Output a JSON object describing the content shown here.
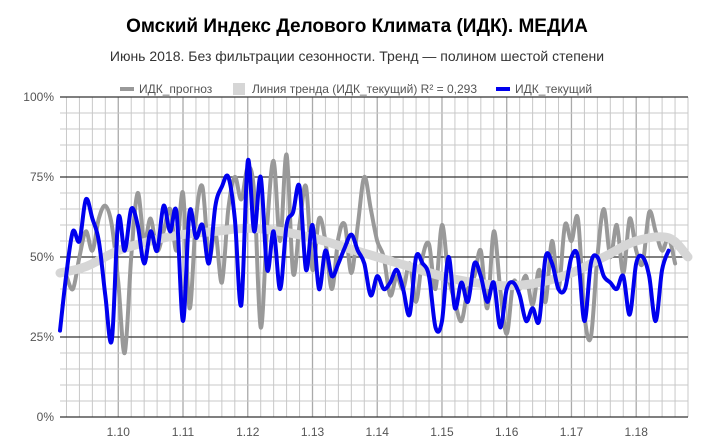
{
  "chart_data": {
    "type": "line",
    "title": "Омский Индекс Делового Климата (ИДК). МЕДИА",
    "subtitle": "Июнь 2018. Без фильтрации сезонности. Тренд — полином шестой степени",
    "ylim": [
      0,
      100
    ],
    "yticks": [
      0,
      25,
      50,
      75,
      100
    ],
    "ytick_labels": [
      "0%",
      "25%",
      "50%",
      "75%",
      "100%"
    ],
    "xlim": [
      1.091,
      1.188
    ],
    "xticks": [
      1.1,
      1.11,
      1.12,
      1.13,
      1.14,
      1.15,
      1.16,
      1.17,
      1.18
    ],
    "xtick_labels": [
      "1.10",
      "1.11",
      "1.12",
      "1.13",
      "1.14",
      "1.15",
      "1.16",
      "1.17",
      "1.18"
    ],
    "grid": true,
    "legend_position": "top",
    "series": [
      {
        "name": "ИДК_прогноз",
        "color": "#999999",
        "x": [
          1.092,
          1.093,
          1.094,
          1.095,
          1.096,
          1.097,
          1.098,
          1.099,
          1.1,
          1.101,
          1.102,
          1.103,
          1.104,
          1.105,
          1.106,
          1.107,
          1.108,
          1.109,
          1.11,
          1.111,
          1.112,
          1.113,
          1.114,
          1.115,
          1.116,
          1.117,
          1.118,
          1.119,
          1.12,
          1.121,
          1.122,
          1.123,
          1.124,
          1.125,
          1.126,
          1.127,
          1.128,
          1.129,
          1.13,
          1.131,
          1.132,
          1.133,
          1.134,
          1.135,
          1.136,
          1.137,
          1.138,
          1.139,
          1.14,
          1.141,
          1.142,
          1.143,
          1.144,
          1.145,
          1.146,
          1.147,
          1.148,
          1.149,
          1.15,
          1.151,
          1.152,
          1.153,
          1.154,
          1.155,
          1.156,
          1.157,
          1.158,
          1.159,
          1.16,
          1.161,
          1.162,
          1.163,
          1.164,
          1.165,
          1.166,
          1.167,
          1.168,
          1.169,
          1.17,
          1.171,
          1.172,
          1.173,
          1.174,
          1.175,
          1.176,
          1.177,
          1.178,
          1.179,
          1.18,
          1.181,
          1.182,
          1.183,
          1.184,
          1.185,
          1.186
        ],
        "values": [
          44,
          40,
          50,
          58,
          52,
          62,
          66,
          60,
          42,
          20,
          50,
          70,
          55,
          62,
          52,
          58,
          65,
          52,
          70,
          34,
          62,
          72,
          50,
          58,
          42,
          65,
          75,
          68,
          78,
          70,
          28,
          60,
          80,
          55,
          82,
          45,
          60,
          72,
          46,
          62,
          55,
          40,
          56,
          60,
          45,
          60,
          75,
          65,
          55,
          50,
          38,
          44,
          40,
          48,
          36,
          50,
          54,
          40,
          60,
          44,
          36,
          30,
          40,
          44,
          52,
          34,
          58,
          40,
          26,
          42,
          40,
          44,
          35,
          46,
          36,
          55,
          40,
          60,
          55,
          62,
          32,
          25,
          50,
          65,
          50,
          60,
          45,
          62,
          52,
          48,
          64,
          58,
          52,
          56,
          48
        ],
        "line_width": 4
      },
      {
        "name": "Линия тренда (ИДК_текущий) R² = 0,293",
        "color": "#d6d6d6",
        "x": [
          1.091,
          1.095,
          1.1,
          1.105,
          1.11,
          1.115,
          1.12,
          1.125,
          1.13,
          1.135,
          1.14,
          1.145,
          1.15,
          1.155,
          1.16,
          1.165,
          1.17,
          1.175,
          1.18,
          1.185,
          1.188
        ],
        "values": [
          45,
          47,
          52,
          55,
          57,
          58,
          59,
          58,
          56,
          53,
          50,
          47,
          44,
          42,
          41,
          42,
          45,
          50,
          55,
          56,
          50
        ],
        "line_width": 9
      },
      {
        "name": "ИДК_текущий",
        "color": "#0000ee",
        "x": [
          1.091,
          1.092,
          1.093,
          1.094,
          1.095,
          1.096,
          1.097,
          1.098,
          1.099,
          1.1,
          1.101,
          1.102,
          1.103,
          1.104,
          1.105,
          1.106,
          1.107,
          1.108,
          1.109,
          1.11,
          1.111,
          1.112,
          1.113,
          1.114,
          1.115,
          1.116,
          1.117,
          1.118,
          1.119,
          1.12,
          1.121,
          1.122,
          1.123,
          1.124,
          1.125,
          1.126,
          1.127,
          1.128,
          1.129,
          1.13,
          1.131,
          1.132,
          1.133,
          1.134,
          1.135,
          1.136,
          1.137,
          1.138,
          1.139,
          1.14,
          1.141,
          1.142,
          1.143,
          1.144,
          1.145,
          1.146,
          1.147,
          1.148,
          1.149,
          1.15,
          1.151,
          1.152,
          1.153,
          1.154,
          1.155,
          1.156,
          1.157,
          1.158,
          1.159,
          1.16,
          1.161,
          1.162,
          1.163,
          1.164,
          1.165,
          1.166,
          1.167,
          1.168,
          1.169,
          1.17,
          1.171,
          1.172,
          1.173,
          1.174,
          1.175,
          1.176,
          1.177,
          1.178,
          1.179,
          1.18,
          1.181,
          1.182,
          1.183,
          1.184,
          1.185
        ],
        "values": [
          27,
          45,
          58,
          55,
          68,
          62,
          55,
          38,
          24,
          62,
          52,
          65,
          60,
          48,
          58,
          52,
          66,
          58,
          64,
          30,
          64,
          56,
          60,
          48,
          66,
          72,
          75,
          62,
          35,
          80,
          58,
          75,
          46,
          58,
          40,
          60,
          64,
          72,
          46,
          60,
          40,
          52,
          44,
          48,
          53,
          57,
          52,
          48,
          38,
          44,
          40,
          42,
          46,
          40,
          32,
          50,
          48,
          44,
          28,
          30,
          50,
          34,
          42,
          36,
          48,
          44,
          36,
          42,
          28,
          40,
          42,
          38,
          30,
          34,
          30,
          50,
          48,
          40,
          40,
          50,
          50,
          30,
          48,
          50,
          44,
          42,
          40,
          44,
          32,
          48,
          50,
          44,
          30,
          46,
          52
        ],
        "line_width": 4
      }
    ]
  }
}
